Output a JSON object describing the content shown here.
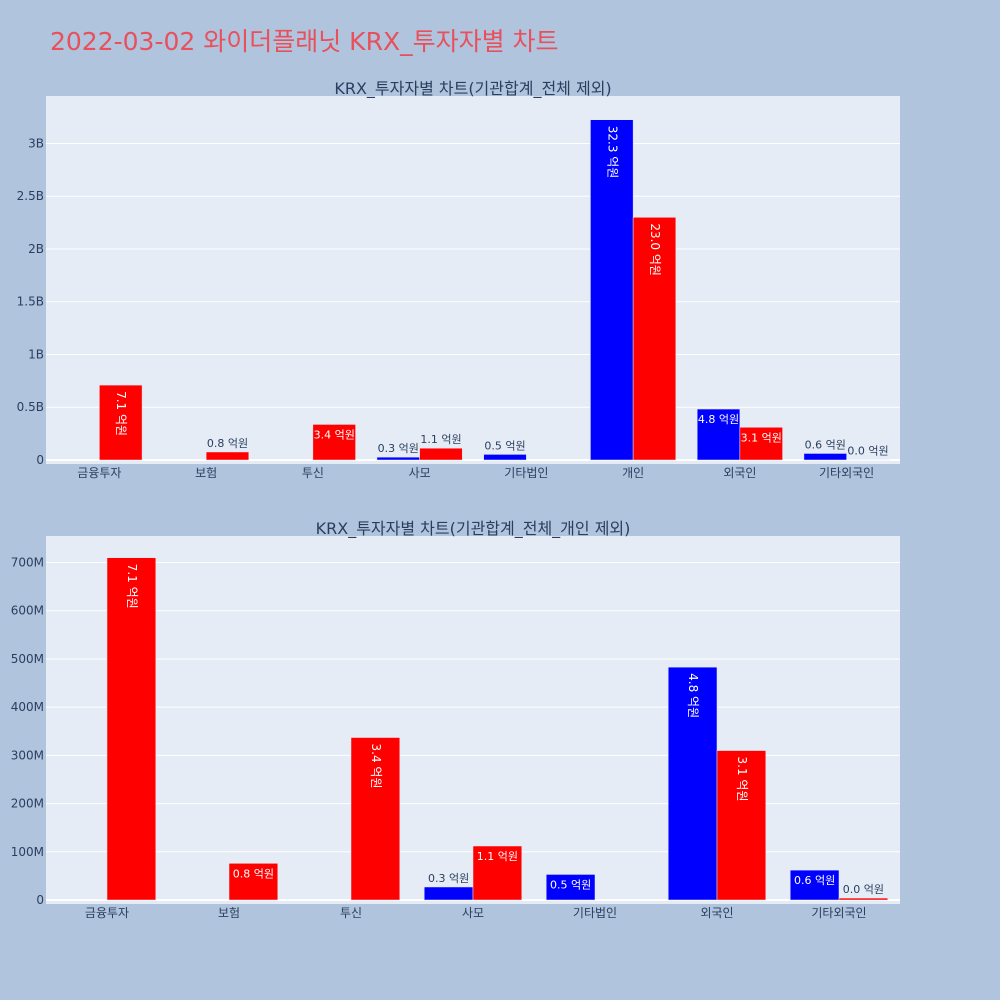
{
  "title": "2022-03-02 와이더플래닛 KRX_투자자별 차트",
  "colors": {
    "buy": "#0000ff",
    "sell": "#ff0000",
    "plot_bg": "#e5ecf6",
    "paper_bg": "#b0c4de",
    "title": "#e8505b"
  },
  "chart_data": [
    {
      "type": "bar",
      "title": "KRX_투자자별 차트(기관합계_전체 제외)",
      "categories": [
        "금융투자",
        "보험",
        "투신",
        "사모",
        "기타법인",
        "개인",
        "외국인",
        "기타외국인"
      ],
      "ylim": [
        0,
        3450000000
      ],
      "yticks": [
        0,
        500000000,
        1000000000,
        1500000000,
        2000000000,
        2500000000,
        3000000000
      ],
      "yticklabels": [
        "0",
        "0.5B",
        "1B",
        "1.5B",
        "2B",
        "2.5B",
        "3B"
      ],
      "grid": true,
      "series": [
        {
          "color": "#0000ff",
          "values": [
            0,
            0,
            0,
            27000000,
            53000000,
            3225000000,
            483000000,
            62000000
          ],
          "labels": [
            "",
            "",
            "",
            "0.3 억원",
            "0.5 억원",
            "32.3 억원",
            "4.8 억원",
            "0.6 억원"
          ]
        },
        {
          "color": "#ff0000",
          "values": [
            710000000,
            76000000,
            337000000,
            112000000,
            0,
            2300000000,
            310000000,
            4000000
          ],
          "labels": [
            "7.1 억원",
            "0.8 억원",
            "3.4 억원",
            "1.1 억원",
            "",
            "23.0 억원",
            "3.1 억원",
            "0.0 억원"
          ]
        }
      ]
    },
    {
      "type": "bar",
      "title": "KRX_투자자별 차트(기관합계_전체_개인 제외)",
      "categories": [
        "금융투자",
        "보험",
        "투신",
        "사모",
        "기타법인",
        "외국인",
        "기타외국인"
      ],
      "ylim": [
        0,
        755000000
      ],
      "yticks": [
        0,
        100000000,
        200000000,
        300000000,
        400000000,
        500000000,
        600000000,
        700000000
      ],
      "yticklabels": [
        "0",
        "100M",
        "200M",
        "300M",
        "400M",
        "500M",
        "600M",
        "700M"
      ],
      "grid": true,
      "series": [
        {
          "color": "#0000ff",
          "values": [
            0,
            0,
            0,
            27000000,
            53000000,
            483000000,
            62000000
          ],
          "labels": [
            "",
            "",
            "",
            "0.3 억원",
            "0.5 억원",
            "4.8 억원",
            "0.6 억원"
          ]
        },
        {
          "color": "#ff0000",
          "values": [
            710000000,
            76000000,
            337000000,
            112000000,
            0,
            310000000,
            4000000
          ],
          "labels": [
            "7.1 억원",
            "0.8 억원",
            "3.4 억원",
            "1.1 억원",
            "",
            "3.1 억원",
            "0.0 억원"
          ]
        }
      ]
    }
  ]
}
